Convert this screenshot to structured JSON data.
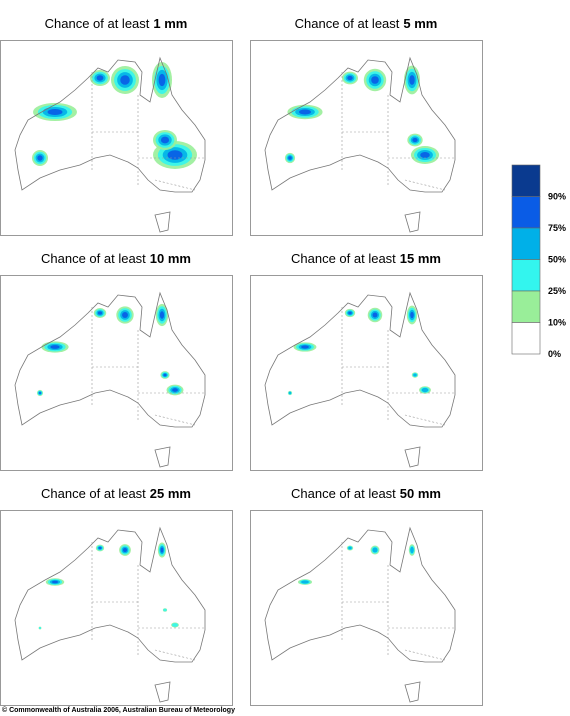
{
  "panels": [
    {
      "title": "Chance of at least",
      "amount": "1 mm"
    },
    {
      "title": "Chance of at least",
      "amount": "5 mm"
    },
    {
      "title": "Chance of at least",
      "amount": "10 mm"
    },
    {
      "title": "Chance of at least",
      "amount": "15 mm"
    },
    {
      "title": "Chance of at least",
      "amount": "25 mm"
    },
    {
      "title": "Chance of at least",
      "amount": "50 mm"
    }
  ],
  "legend": {
    "labels": [
      "90%",
      "75%",
      "50%",
      "25%",
      "10%",
      "0%"
    ],
    "colors": [
      "#0a3a8f",
      "#0a5ce6",
      "#00b0e8",
      "#33f5ee",
      "#99ee99",
      "#ffffff"
    ]
  },
  "copyright": "© Commonwealth of Australia 2006, Australian Bureau of Meteorology"
}
